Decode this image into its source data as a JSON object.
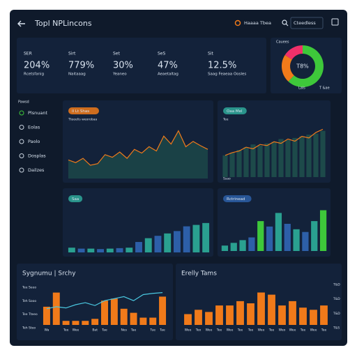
{
  "header": {
    "title": "Topl NPLincons",
    "link": "Haaaa Tbea",
    "button": "Cteedless"
  },
  "kpis": [
    {
      "label": "SER",
      "value": "204%",
      "sub": "Rcetsfanig"
    },
    {
      "label": "Sirt",
      "value": "779%",
      "sub": "Naitaaag"
    },
    {
      "label": "Set",
      "value": "30%",
      "sub": "Yeaneo"
    },
    {
      "label": "SeS",
      "value": "47%",
      "sub": "Aeaetaltag"
    },
    {
      "label": "Sit",
      "value": "12.5%",
      "sub": "Saag Feaeaa Oosles"
    }
  ],
  "donut": {
    "title": "Cauees",
    "label": "T8%",
    "values": [
      62,
      22,
      16
    ],
    "colors": [
      "#3ec83a",
      "#f07a1a",
      "#f0306a"
    ],
    "legend": [
      "Lals",
      "T &ae"
    ]
  },
  "sidebar": {
    "heading": "Pawsd",
    "items": [
      "Plsnuant",
      "Eolas",
      "Paolo",
      "Dosplas",
      "Dailzes"
    ],
    "active": 0
  },
  "panels": [
    {
      "tag": "Il Lt Shas",
      "tag_color": "#f07a1a",
      "subtitle": "Tteeelis weorobaa",
      "type": "area",
      "ylim": [
        0,
        100
      ],
      "line": {
        "color": "#f07a1a",
        "values": [
          35,
          30,
          38,
          25,
          28,
          45,
          40,
          50,
          38,
          55,
          48,
          60,
          52,
          80,
          65,
          90,
          60,
          70,
          62,
          55
        ]
      }
    },
    {
      "tag": "Oaa Mel",
      "tag_color": "#2fa89a",
      "subtitle": "Tee",
      "type": "bar-line",
      "ylim": [
        0,
        100
      ],
      "bars": {
        "color": "#1d4a4a",
        "values": [
          40,
          45,
          50,
          55,
          60,
          58,
          62,
          65,
          70,
          68,
          72,
          75,
          78,
          80,
          85
        ]
      },
      "line": {
        "color": "#f07a1a",
        "values": [
          40,
          45,
          48,
          55,
          52,
          60,
          58,
          65,
          62,
          70,
          66,
          75,
          72,
          82,
          88
        ]
      },
      "footer": "Ssao"
    },
    {
      "tag": "Saa",
      "tag_color": "#2fa89a",
      "type": "bar",
      "ylim": [
        0,
        100
      ],
      "bars": {
        "colors": [
          "#2aa090",
          "#2d5fa8",
          "#2aa090",
          "#2d5fa8",
          "#2aa090",
          "#2d5fa8",
          "#2aa090",
          "#2d5fa8",
          "#2aa090",
          "#2d5fa8",
          "#2aa090",
          "#2d5fa8",
          "#2d5fa8",
          "#2aa090",
          "#2aa090"
        ],
        "values": [
          10,
          8,
          8,
          7,
          8,
          9,
          10,
          22,
          30,
          35,
          40,
          45,
          55,
          58,
          62
        ]
      }
    },
    {
      "tag": "Rctrinead",
      "tag_color": "#2d5fa8",
      "type": "bar",
      "ylim": [
        0,
        100
      ],
      "bars": {
        "colors": [
          "#2aa090",
          "#2aa090",
          "#2aa090",
          "#2d5fa8",
          "#3ec83a",
          "#2d5fa8",
          "#2aa090",
          "#2d5fa8",
          "#2aa090",
          "#2d5fa8",
          "#2aa090",
          "#3ec83a"
        ],
        "values": [
          10,
          15,
          20,
          25,
          55,
          45,
          70,
          50,
          40,
          35,
          55,
          75
        ]
      }
    },
    {
      "title": "Sygnumu | Srchy",
      "type": "bar-line",
      "ylim": [
        0,
        100
      ],
      "bars": {
        "color": "#f07a1a",
        "values": [
          45,
          80,
          10,
          10,
          10,
          15,
          60,
          65,
          40,
          30,
          18,
          18,
          70
        ]
      },
      "line": {
        "color": "#4ac8e0",
        "values": [
          40,
          45,
          42,
          50,
          55,
          48,
          60,
          65,
          70,
          60,
          75,
          78,
          80
        ]
      },
      "categories": [
        "Wa",
        null,
        "Tee",
        "Wee",
        null,
        "Bat",
        "Tae",
        null,
        "Nes",
        "Tae",
        null,
        "Tue",
        "Tae"
      ],
      "axis_labels": [
        "Tee Seeo",
        "Teh Sooo",
        "Tee Tteeo",
        "Teh Steo"
      ]
    },
    {
      "title": "Erelly Tams",
      "type": "bar",
      "ylim": [
        0,
        100
      ],
      "bars": {
        "color": "#f07a1a",
        "values": [
          25,
          35,
          30,
          45,
          45,
          55,
          50,
          75,
          70,
          45,
          55,
          40,
          35,
          45
        ]
      },
      "categories": [
        "Wee",
        "Teo",
        "Wee",
        "Tee",
        "Wee",
        "Tee",
        "Tee",
        "Wee",
        "Tee",
        "Weo",
        "Wee",
        "Tee",
        "Wee",
        "Tee"
      ],
      "axis_labels": [
        "T&D",
        "T&D",
        "T&D",
        "T&S"
      ]
    }
  ]
}
